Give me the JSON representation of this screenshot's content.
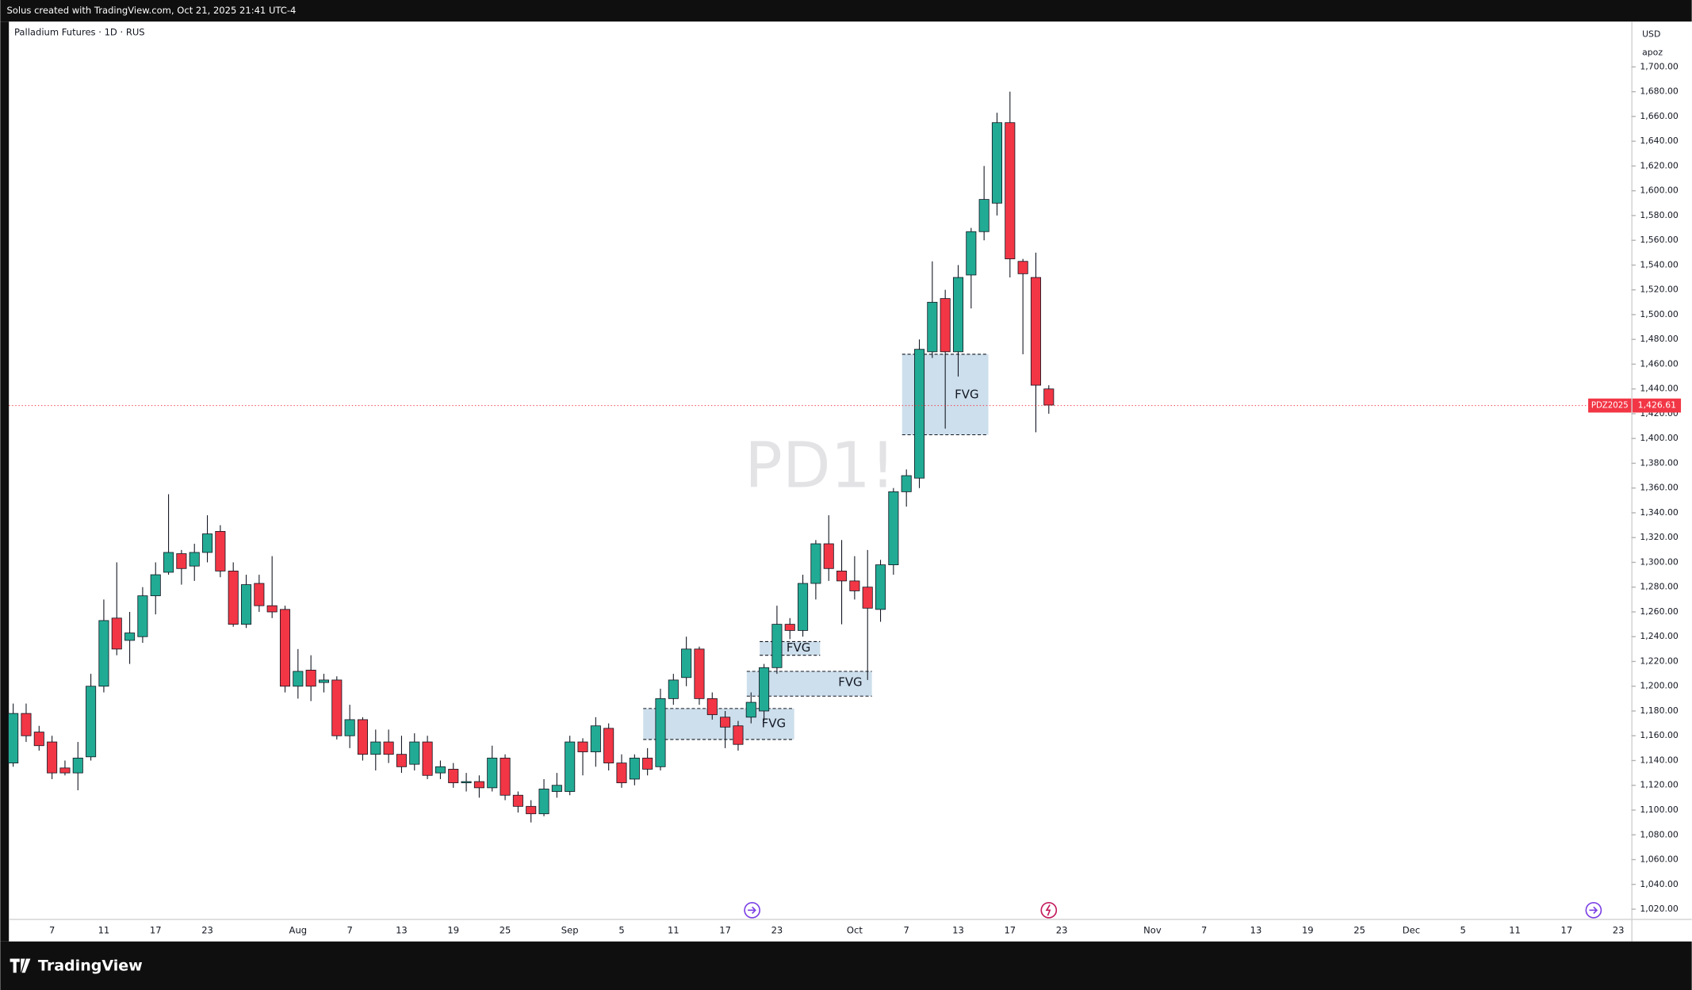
{
  "header": {
    "credit": "Solus created with TradingView.com, Oct 21, 2025 21:41 UTC-4"
  },
  "footer": {
    "brand": "TradingView"
  },
  "chart_data": {
    "type": "candlestick",
    "title": "Palladium Futures · 1D · RUS",
    "watermark": "PD1!",
    "currency": "USD",
    "axis_note": "apoz",
    "up_color": "#22ab94",
    "down_color": "#f23645",
    "categories": [
      null,
      null,
      null,
      "7",
      null,
      null,
      null,
      "11",
      null,
      null,
      null,
      "17",
      null,
      null,
      null,
      "23",
      null,
      null,
      null,
      null,
      null,
      null,
      "Aug",
      null,
      null,
      null,
      "7",
      null,
      null,
      null,
      "13",
      null,
      null,
      null,
      "19",
      null,
      null,
      null,
      "25",
      null,
      null,
      null,
      null,
      "Sep",
      null,
      null,
      null,
      "5",
      null,
      null,
      null,
      "11",
      null,
      null,
      null,
      "17",
      null,
      null,
      null,
      "23",
      null,
      null,
      null,
      null,
      null,
      "Oct",
      null,
      null,
      null,
      "7",
      null,
      null,
      null,
      "13",
      null,
      null,
      null,
      "17",
      null,
      null,
      null,
      "23",
      null,
      null,
      null,
      null,
      null,
      null,
      "Nov",
      null,
      null,
      null,
      "7",
      null,
      null,
      null,
      "13",
      null,
      null,
      null,
      "19",
      null,
      null,
      null,
      "25",
      null,
      null,
      null,
      "Dec",
      null,
      null,
      null,
      "5",
      null,
      null,
      null,
      "11",
      null,
      null,
      null,
      "17",
      null,
      null,
      null,
      "23"
    ],
    "open": [
      1138,
      1178,
      1163,
      1155,
      1134,
      1130,
      1143,
      1200,
      1255,
      1237,
      1240,
      1273,
      1292,
      1307,
      1297,
      1308,
      1325,
      1293,
      1250,
      1283,
      1265,
      1262,
      1200,
      1213,
      1203,
      1205,
      1160,
      1173,
      1145,
      1155,
      1145,
      1137,
      1155,
      1130,
      1133,
      1122,
      1123,
      1118,
      1142,
      1112,
      1103,
      1097,
      1115,
      1115,
      1155,
      1147,
      1166,
      1138,
      1125,
      1142,
      1135,
      1190,
      1207,
      1230,
      1190,
      1175,
      1168,
      1175,
      1180,
      1215,
      1250,
      1245,
      1283,
      1315,
      1293,
      1285,
      1280,
      1262,
      1298,
      1357,
      1368,
      1470,
      1513,
      1470,
      1532,
      1567,
      1590,
      1655,
      1543,
      1530,
      1440,
      null,
      null,
      null,
      null,
      null,
      null,
      null,
      null,
      null,
      null,
      null,
      null,
      null,
      null,
      null,
      null,
      null,
      null,
      null,
      null,
      null,
      null,
      null,
      null,
      null,
      null,
      null,
      null,
      null,
      null,
      null,
      null,
      null,
      null,
      null,
      null,
      null,
      null,
      null,
      null,
      null,
      null,
      null,
      null
    ],
    "high": [
      1186,
      1186,
      1168,
      1160,
      1140,
      1155,
      1210,
      1270,
      1300,
      1260,
      1280,
      1300,
      1355,
      1310,
      1315,
      1338,
      1330,
      1300,
      1290,
      1290,
      1305,
      1265,
      1230,
      1225,
      1210,
      1208,
      1185,
      1175,
      1165,
      1165,
      1160,
      1162,
      1160,
      1140,
      1138,
      1130,
      1128,
      1152,
      1145,
      1115,
      1108,
      1125,
      1130,
      1160,
      1158,
      1175,
      1170,
      1145,
      1145,
      1150,
      1198,
      1210,
      1240,
      1232,
      1195,
      1180,
      1172,
      1195,
      1218,
      1265,
      1255,
      1290,
      1318,
      1338,
      1318,
      1305,
      1310,
      1302,
      1360,
      1375,
      1480,
      1543,
      1520,
      1540,
      1570,
      1620,
      1663,
      1680,
      1545,
      1550,
      1443,
      null,
      null,
      null,
      null,
      null,
      null,
      null,
      null,
      null,
      null,
      null,
      null,
      null,
      null,
      null,
      null,
      null,
      null,
      null,
      null,
      null,
      null,
      null,
      null,
      null,
      null,
      null,
      null,
      null,
      null,
      null,
      null,
      null,
      null,
      null,
      null,
      null,
      null,
      null,
      null,
      null,
      null,
      null,
      null
    ],
    "low": [
      1135,
      1155,
      1148,
      1125,
      1128,
      1116,
      1140,
      1195,
      1225,
      1218,
      1235,
      1258,
      1290,
      1282,
      1285,
      1300,
      1288,
      1248,
      1247,
      1260,
      1255,
      1195,
      1190,
      1188,
      1195,
      1157,
      1150,
      1140,
      1132,
      1138,
      1130,
      1132,
      1125,
      1125,
      1118,
      1115,
      1110,
      1115,
      1108,
      1098,
      1090,
      1095,
      1110,
      1112,
      1128,
      1135,
      1132,
      1118,
      1120,
      1128,
      1132,
      1185,
      1200,
      1185,
      1173,
      1150,
      1148,
      1170,
      1172,
      1210,
      1238,
      1240,
      1270,
      1285,
      1250,
      1270,
      1205,
      1252,
      1290,
      1345,
      1360,
      1465,
      1408,
      1450,
      1505,
      1560,
      1580,
      1530,
      1468,
      1405,
      1420,
      null,
      null,
      null,
      null,
      null,
      null,
      null,
      null,
      null,
      null,
      null,
      null,
      null,
      null,
      null,
      null,
      null,
      null,
      null,
      null,
      null,
      null,
      null,
      null,
      null,
      null,
      null,
      null,
      null,
      null,
      null,
      null,
      null,
      null,
      null,
      null,
      null,
      null,
      null,
      null,
      null,
      null,
      null,
      null
    ],
    "close": [
      1178,
      1160,
      1152,
      1130,
      1130,
      1142,
      1200,
      1253,
      1230,
      1243,
      1273,
      1290,
      1308,
      1295,
      1308,
      1323,
      1293,
      1250,
      1282,
      1265,
      1260,
      1200,
      1212,
      1200,
      1205,
      1160,
      1173,
      1145,
      1155,
      1145,
      1135,
      1155,
      1128,
      1135,
      1122,
      1123,
      1118,
      1142,
      1112,
      1103,
      1097,
      1117,
      1120,
      1155,
      1147,
      1168,
      1138,
      1122,
      1142,
      1133,
      1190,
      1205,
      1230,
      1190,
      1177,
      1167,
      1153,
      1187,
      1215,
      1250,
      1245,
      1283,
      1315,
      1295,
      1285,
      1277,
      1263,
      1298,
      1357,
      1370,
      1472,
      1510,
      1470,
      1530,
      1567,
      1593,
      1655,
      1545,
      1533,
      1443,
      1427,
      null,
      null,
      null,
      null,
      null,
      null,
      null,
      null,
      null,
      null,
      null,
      null,
      null,
      null,
      null,
      null,
      null,
      null,
      null,
      null,
      null,
      null,
      null,
      null,
      null,
      null,
      null,
      null,
      null,
      null,
      null,
      null,
      null,
      null,
      null,
      null,
      null,
      null,
      null,
      null,
      null,
      null,
      null,
      null
    ],
    "ylim": [
      1012.2,
      1736.6
    ],
    "yticks": [
      {
        "value": 1020,
        "label": "1,020.00"
      },
      {
        "value": 1040,
        "label": "1,040.00"
      },
      {
        "value": 1060,
        "label": "1,060.00"
      },
      {
        "value": 1080,
        "label": "1,080.00"
      },
      {
        "value": 1100,
        "label": "1,100.00"
      },
      {
        "value": 1120,
        "label": "1,120.00"
      },
      {
        "value": 1140,
        "label": "1,140.00"
      },
      {
        "value": 1160,
        "label": "1,160.00"
      },
      {
        "value": 1180,
        "label": "1,180.00"
      },
      {
        "value": 1200,
        "label": "1,200.00"
      },
      {
        "value": 1220,
        "label": "1,220.00"
      },
      {
        "value": 1240,
        "label": "1,240.00"
      },
      {
        "value": 1260,
        "label": "1,260.00"
      },
      {
        "value": 1280,
        "label": "1,280.00"
      },
      {
        "value": 1300,
        "label": "1,300.00"
      },
      {
        "value": 1320,
        "label": "1,320.00"
      },
      {
        "value": 1340,
        "label": "1,340.00"
      },
      {
        "value": 1360,
        "label": "1,360.00"
      },
      {
        "value": 1380,
        "label": "1,380.00"
      },
      {
        "value": 1400,
        "label": "1,400.00"
      },
      {
        "value": 1420,
        "label": "1,420.00"
      },
      {
        "value": 1440,
        "label": "1,440.00"
      },
      {
        "value": 1460,
        "label": "1,460.00"
      },
      {
        "value": 1480,
        "label": "1,480.00"
      },
      {
        "value": 1500,
        "label": "1,500.00"
      },
      {
        "value": 1520,
        "label": "1,520.00"
      },
      {
        "value": 1540,
        "label": "1,540.00"
      },
      {
        "value": 1560,
        "label": "1,560.00"
      },
      {
        "value": 1580,
        "label": "1,580.00"
      },
      {
        "value": 1600,
        "label": "1,600.00"
      },
      {
        "value": 1620,
        "label": "1,620.00"
      },
      {
        "value": 1640,
        "label": "1,640.00"
      },
      {
        "value": 1660,
        "label": "1,660.00"
      },
      {
        "value": 1680,
        "label": "1,680.00"
      },
      {
        "value": 1700,
        "label": "1,700.00"
      }
    ],
    "last_price": {
      "symbol": "PDZ2025",
      "value": 1426.61,
      "label": "1,426.61",
      "color": "#f23645"
    },
    "zones": [
      {
        "label": "FVG",
        "low": 1403,
        "high": 1468
      },
      {
        "label": "FVG",
        "low": 1225,
        "high": 1236
      },
      {
        "label": "FVG",
        "low": 1192,
        "high": 1212
      },
      {
        "label": "FVG",
        "low": 1157,
        "high": 1182
      }
    ],
    "zone_color": "#c8dbea"
  }
}
